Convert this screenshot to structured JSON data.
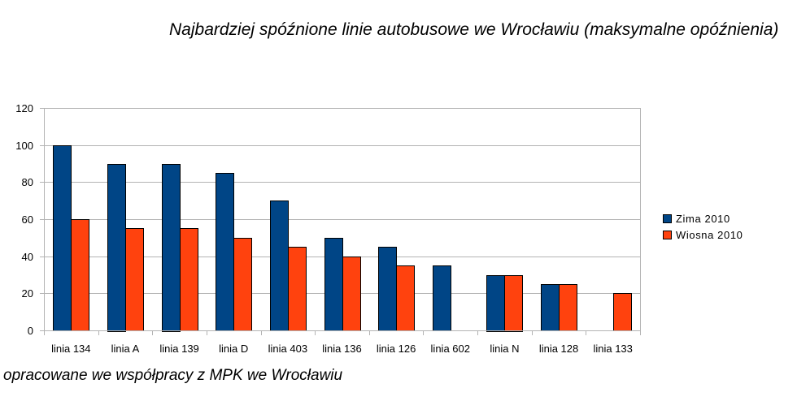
{
  "title": "Najbardziej spóźnione linie autobusowe we Wrocławiu (maksymalne opóźnienia)",
  "footer": "opracowane we współpracy z MPK we Wrocławiu",
  "chart_data": {
    "type": "bar",
    "title": "Najbardziej spóźnione linie autobusowe we Wrocławiu (maksymalne opóźnienia)",
    "xlabel": "",
    "ylabel": "",
    "categories": [
      "linia 134",
      "linia A",
      "linia 139",
      "linia D",
      "linia 403",
      "linia 136",
      "linia 126",
      "linia 602",
      "linia N",
      "linia 128",
      "linia 133"
    ],
    "series": [
      {
        "name": "Zima 2010",
        "color": "#004586",
        "values": [
          100,
          90,
          90,
          85,
          70,
          50,
          45,
          35,
          30,
          25,
          null
        ]
      },
      {
        "name": "Wiosna 2010",
        "color": "#ff420e",
        "values": [
          60,
          55,
          55,
          50,
          45,
          40,
          35,
          null,
          30,
          25,
          20
        ]
      }
    ],
    "ylim": [
      0,
      120
    ],
    "yticks": [
      0,
      20,
      40,
      60,
      80,
      100,
      120
    ],
    "grid": true,
    "legend_position": "right"
  }
}
